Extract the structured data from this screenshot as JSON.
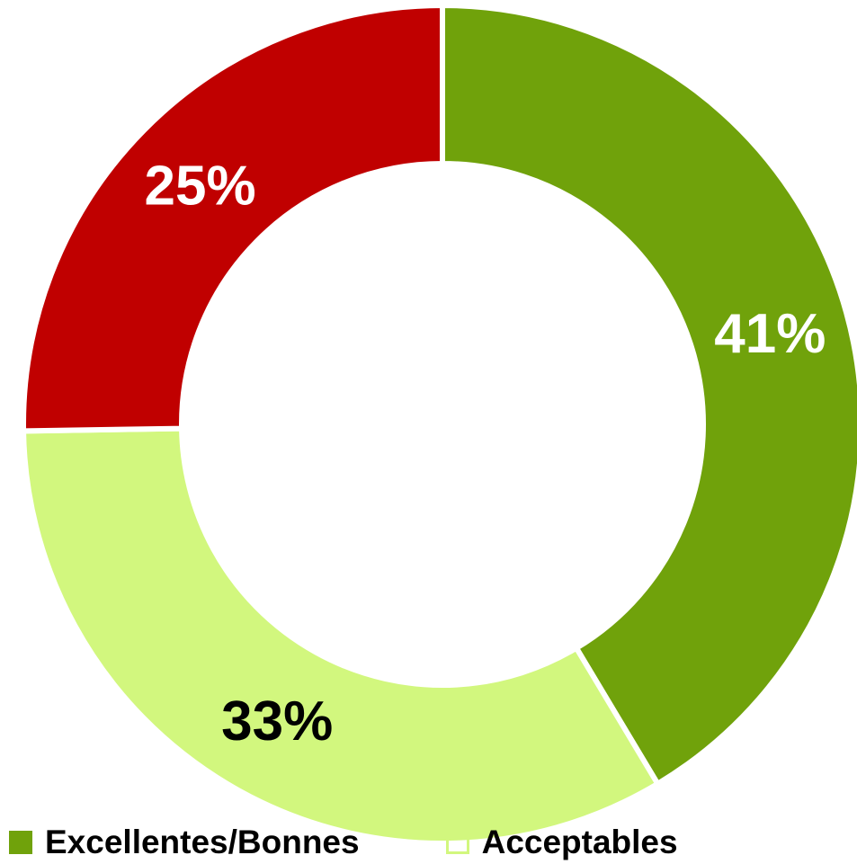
{
  "chart_data": {
    "type": "pie",
    "variant": "donut",
    "slices": [
      {
        "label": "Excellentes/Bonnes",
        "value": 41,
        "data_label": "41%",
        "color": "#70A20B",
        "label_color": "#FFFFFF"
      },
      {
        "label": "Acceptables",
        "value": 33,
        "data_label": "33%",
        "color": "#D2F77E",
        "label_color": "#000000"
      },
      {
        "label": "",
        "value": 25,
        "data_label": "25%",
        "color": "#C00000",
        "label_color": "#FFFFFF"
      }
    ],
    "start": "top",
    "direction": "clockwise",
    "legend": {
      "placement": "bottom",
      "items": [
        {
          "label": "Excellentes/Bonnes",
          "color": "#70A20B",
          "style": "filled"
        },
        {
          "label": "Acceptables",
          "color": "#D2F77E",
          "style": "outline"
        }
      ]
    }
  }
}
